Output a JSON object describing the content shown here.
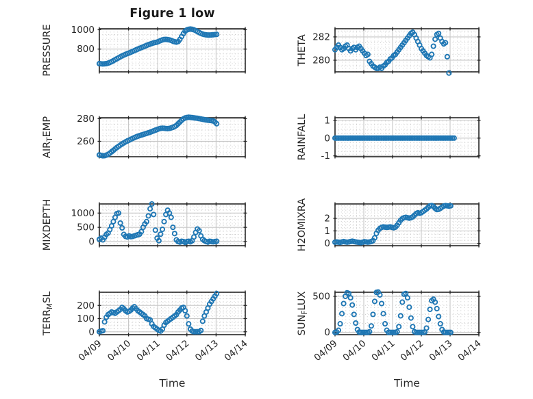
{
  "title": "Figure 1 low",
  "xlabel": "Time",
  "colors": {
    "marker": "#1f77b4",
    "spine": "#262626",
    "grid_major": "#c6c6c6",
    "grid_minor": "#c9c9c9",
    "text": "#262626"
  },
  "time_axis": {
    "xlim": [
      0,
      5
    ],
    "ticks": [
      "04/09",
      "04/10",
      "04/11",
      "04/12",
      "04/13",
      "04/14"
    ],
    "minor_per_day": 8
  },
  "chart_data": [
    {
      "type": "scatter",
      "name": "PRESSURE",
      "row": 0,
      "col": 0,
      "ylabel_parts": [
        {
          "t": "PRESSURE"
        }
      ],
      "ylim": [
        565,
        1010
      ],
      "yticks": [
        800,
        1000
      ],
      "ytick_labels": [
        "800",
        "1000"
      ],
      "yminor": 50,
      "t_step": 0.06,
      "values": [
        650,
        648,
        647,
        648,
        650,
        655,
        662,
        670,
        680,
        690,
        700,
        710,
        720,
        730,
        738,
        746,
        754,
        760,
        768,
        776,
        784,
        792,
        800,
        808,
        815,
        822,
        830,
        838,
        845,
        852,
        858,
        864,
        868,
        872,
        880,
        888,
        895,
        899,
        900,
        898,
        895,
        890,
        882,
        876,
        872,
        878,
        900,
        930,
        960,
        985,
        998,
        1004,
        1007,
        1004,
        999,
        991,
        981,
        971,
        962,
        955,
        950,
        947,
        945,
        945,
        946,
        948,
        950,
        952
      ]
    },
    {
      "type": "scatter",
      "name": "THETA",
      "row": 0,
      "col": 1,
      "ylabel_parts": [
        {
          "t": "THETA"
        }
      ],
      "ylim": [
        279.0,
        282.7
      ],
      "yticks": [
        280,
        282
      ],
      "ytick_labels": [
        "280",
        "282"
      ],
      "yminor": 0.5,
      "t_step": 0.06,
      "values": [
        280.9,
        281.1,
        281.3,
        281.1,
        280.9,
        281.0,
        281.2,
        281.3,
        281.0,
        280.8,
        281.0,
        281.1,
        280.9,
        281.1,
        281.2,
        281.0,
        280.8,
        280.6,
        280.4,
        280.5,
        279.9,
        279.7,
        279.5,
        279.4,
        279.3,
        279.3,
        279.4,
        279.3,
        279.5,
        279.6,
        279.8,
        279.9,
        280.1,
        280.2,
        280.4,
        280.5,
        280.7,
        280.9,
        281.1,
        281.3,
        281.5,
        281.7,
        281.9,
        282.1,
        282.3,
        282.4,
        282.2,
        281.9,
        281.6,
        281.3,
        281.0,
        280.8,
        280.6,
        280.4,
        280.3,
        280.2,
        280.5,
        281.2,
        281.8,
        282.2,
        282.3,
        281.9,
        281.6,
        281.4,
        281.5,
        280.3,
        278.9,
        null
      ]
    },
    {
      "type": "scatter",
      "name": "AIR_TEMP",
      "row": 1,
      "col": 0,
      "ylabel_parts": [
        {
          "t": "AIR"
        },
        {
          "t": "T",
          "sub": true
        },
        {
          "t": "EMP"
        }
      ],
      "ylim": [
        246.4,
        280.8
      ],
      "yticks": [
        260,
        280
      ],
      "ytick_labels": [
        "260",
        "280"
      ],
      "yminor": 5,
      "t_step": 0.06,
      "values": [
        248,
        247.5,
        247.2,
        247.3,
        247.8,
        248.5,
        249.5,
        250.8,
        252,
        253.3,
        254.5,
        255.6,
        256.7,
        257.7,
        258.6,
        259.5,
        260.3,
        261,
        261.8,
        262.5,
        263.2,
        263.9,
        264.5,
        265,
        265.5,
        266,
        266.5,
        267,
        267.5,
        268,
        268.6,
        269.2,
        269.8,
        270.4,
        271,
        271.4,
        271.6,
        271.5,
        271.3,
        271.2,
        271.4,
        271.8,
        272.3,
        273,
        274,
        275.5,
        277,
        278.5,
        279.8,
        280.6,
        281,
        281.2,
        281.1,
        280.9,
        280.7,
        280.5,
        280.3,
        280,
        279.7,
        279.4,
        279.1,
        278.8,
        278.6,
        278.4,
        278.2,
        278,
        277,
        275.5
      ]
    },
    {
      "type": "scatter",
      "name": "RAINFALL",
      "row": 1,
      "col": 1,
      "ylabel_parts": [
        {
          "t": "RAINFALL"
        }
      ],
      "ylim": [
        -1.05,
        1.15
      ],
      "yticks": [
        -1,
        0,
        1
      ],
      "ytick_labels": [
        "-1",
        "0",
        "1"
      ],
      "yminor": 0.25,
      "t_step": 0.06,
      "values": [
        0,
        0,
        0,
        0,
        0,
        0,
        0,
        0,
        0,
        0,
        0,
        0,
        0,
        0,
        0,
        0,
        0,
        0,
        0,
        0,
        0,
        0,
        0,
        0,
        0,
        0,
        0,
        0,
        0,
        0,
        0,
        0,
        0,
        0,
        0,
        0,
        0,
        0,
        0,
        0,
        0,
        0,
        0,
        0,
        0,
        0,
        0,
        0,
        0,
        0,
        0,
        0,
        0,
        0,
        0,
        0,
        0,
        0,
        0,
        0,
        0,
        0,
        0,
        0,
        0,
        0,
        0,
        0,
        0,
        0
      ]
    },
    {
      "type": "scatter",
      "name": "MIXDEPTH",
      "row": 2,
      "col": 0,
      "ylabel_parts": [
        {
          "t": "MIXDEPTH"
        }
      ],
      "ylim": [
        -145,
        1320
      ],
      "yticks": [
        0,
        500,
        1000
      ],
      "ytick_labels": [
        "0",
        "500",
        "1000"
      ],
      "yminor": 125,
      "t_step": 0.06,
      "values": [
        80,
        120,
        60,
        150,
        250,
        300,
        420,
        550,
        700,
        850,
        980,
        1000,
        650,
        480,
        250,
        180,
        160,
        200,
        170,
        180,
        200,
        220,
        240,
        260,
        350,
        500,
        620,
        700,
        900,
        1150,
        1320,
        950,
        400,
        120,
        30,
        260,
        430,
        700,
        950,
        1100,
        1000,
        850,
        500,
        280,
        60,
        0,
        -20,
        10,
        0,
        -30,
        0,
        10,
        -10,
        30,
        160,
        320,
        440,
        380,
        200,
        80,
        30,
        0,
        -20,
        10,
        0,
        -10,
        0,
        10
      ]
    },
    {
      "type": "scatter",
      "name": "H2OMIXRA",
      "row": 2,
      "col": 1,
      "ylabel_parts": [
        {
          "t": "H2OMIXRA"
        }
      ],
      "ylim": [
        -0.18,
        3.15
      ],
      "yticks": [
        0,
        1,
        2
      ],
      "ytick_labels": [
        "0",
        "1",
        "2"
      ],
      "yminor": 0.25,
      "t_step": 0.06,
      "values": [
        0.1,
        0.12,
        0.1,
        0.08,
        0.12,
        0.15,
        0.12,
        0.1,
        0.12,
        0.15,
        0.18,
        0.15,
        0.12,
        0.1,
        0.08,
        0.06,
        0.1,
        0.14,
        0.12,
        0.1,
        0.12,
        0.15,
        0.22,
        0.45,
        0.8,
        1.05,
        1.2,
        1.28,
        1.32,
        1.3,
        1.28,
        1.3,
        1.32,
        1.28,
        1.25,
        1.3,
        1.45,
        1.65,
        1.85,
        1.98,
        2.05,
        2.08,
        2.05,
        2.02,
        2.05,
        2.12,
        2.25,
        2.38,
        2.45,
        2.4,
        2.45,
        2.55,
        2.65,
        2.75,
        2.88,
        3.0,
        3.02,
        2.95,
        2.8,
        2.7,
        2.72,
        2.8,
        2.9,
        2.98,
        3.02,
        3.0,
        2.98,
        3.0
      ]
    },
    {
      "type": "scatter",
      "name": "TERR_MSL",
      "row": 3,
      "col": 0,
      "ylabel_parts": [
        {
          "t": "TERR"
        },
        {
          "t": "M",
          "sub": true
        },
        {
          "t": "SL"
        }
      ],
      "ylim": [
        -22,
        300
      ],
      "yticks": [
        0,
        100,
        200
      ],
      "ytick_labels": [
        "0",
        "100",
        "200"
      ],
      "yminor": 25,
      "t_step": 0.06,
      "values": [
        0,
        5,
        8,
        75,
        110,
        130,
        140,
        150,
        145,
        140,
        150,
        160,
        170,
        185,
        175,
        160,
        150,
        155,
        165,
        180,
        190,
        175,
        160,
        150,
        140,
        130,
        120,
        100,
        95,
        90,
        60,
        40,
        30,
        20,
        10,
        5,
        20,
        50,
        70,
        80,
        90,
        100,
        110,
        120,
        130,
        150,
        165,
        180,
        185,
        160,
        120,
        60,
        20,
        5,
        0,
        0,
        0,
        0,
        10,
        80,
        120,
        150,
        180,
        210,
        230,
        250,
        270,
        290
      ]
    },
    {
      "type": "scatter",
      "name": "SUN_FLUX",
      "row": 3,
      "col": 1,
      "ylabel_parts": [
        {
          "t": "SUN"
        },
        {
          "t": "F",
          "sub": true
        },
        {
          "t": "LUX"
        }
      ],
      "ylim": [
        -31,
        557
      ],
      "yticks": [
        0,
        500
      ],
      "ytick_labels": [
        "0",
        "500"
      ],
      "yminor": 125,
      "t_step": 0.06,
      "values": [
        0,
        5,
        30,
        120,
        260,
        400,
        500,
        550,
        540,
        480,
        380,
        250,
        130,
        40,
        5,
        0,
        0,
        0,
        0,
        0,
        10,
        90,
        250,
        430,
        555,
        560,
        520,
        400,
        260,
        120,
        30,
        0,
        0,
        0,
        0,
        0,
        10,
        80,
        230,
        420,
        530,
        540,
        480,
        350,
        200,
        80,
        10,
        0,
        0,
        0,
        0,
        0,
        5,
        60,
        180,
        320,
        440,
        460,
        420,
        330,
        220,
        120,
        40,
        5,
        0,
        0,
        0,
        0
      ]
    }
  ]
}
